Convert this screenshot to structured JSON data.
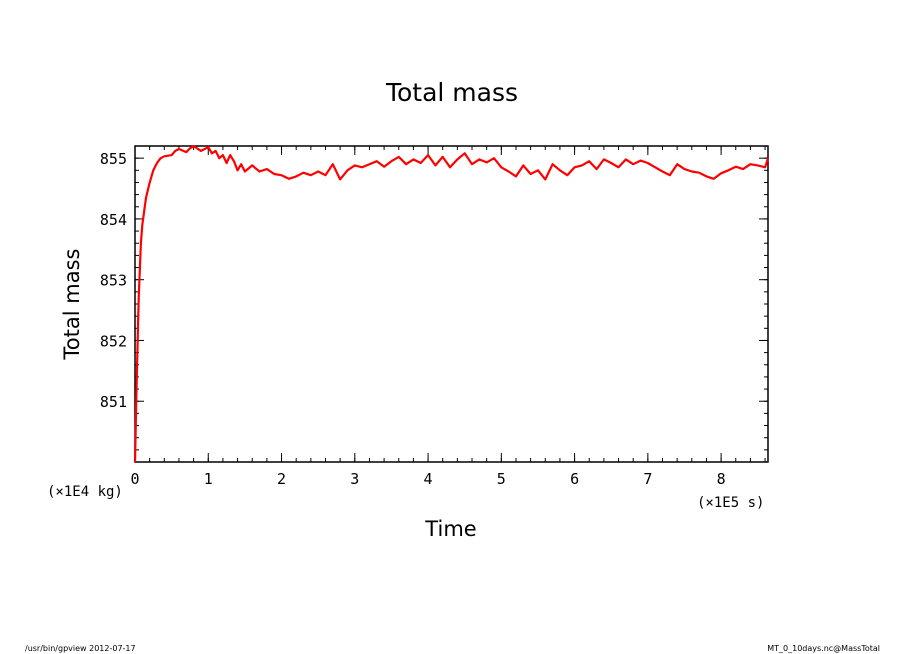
{
  "chart_data": {
    "type": "line",
    "title": "Total mass",
    "xlabel": "Time",
    "ylabel": "Total mass",
    "x_unit": "(×1E5 s)",
    "y_unit": "(×1E4 kg)",
    "xlim": [
      0,
      8.64
    ],
    "ylim": [
      850,
      855.2
    ],
    "x_ticks": [
      0,
      1,
      2,
      3,
      4,
      5,
      6,
      7,
      8
    ],
    "y_ticks": [
      851,
      852,
      853,
      854,
      855
    ],
    "x_minor_step": 0.2,
    "y_minor_step": 0.2,
    "grid": false,
    "series": [
      {
        "color": "#ff0000",
        "x": [
          0,
          0.02,
          0.05,
          0.08,
          0.1,
          0.15,
          0.2,
          0.25,
          0.3,
          0.35,
          0.4,
          0.5,
          0.55,
          0.6,
          0.7,
          0.75,
          0.8,
          0.9,
          1.0,
          1.05,
          1.1,
          1.15,
          1.2,
          1.25,
          1.3,
          1.35,
          1.4,
          1.45,
          1.5,
          1.6,
          1.7,
          1.8,
          1.9,
          2.0,
          2.1,
          2.2,
          2.3,
          2.4,
          2.5,
          2.6,
          2.7,
          2.8,
          2.9,
          3.0,
          3.1,
          3.2,
          3.3,
          3.4,
          3.5,
          3.6,
          3.7,
          3.8,
          3.9,
          4.0,
          4.1,
          4.2,
          4.3,
          4.4,
          4.5,
          4.6,
          4.7,
          4.8,
          4.9,
          5.0,
          5.1,
          5.2,
          5.3,
          5.4,
          5.5,
          5.6,
          5.7,
          5.8,
          5.9,
          6.0,
          6.1,
          6.2,
          6.3,
          6.4,
          6.5,
          6.6,
          6.7,
          6.8,
          6.9,
          7.0,
          7.1,
          7.2,
          7.3,
          7.4,
          7.5,
          7.6,
          7.7,
          7.8,
          7.9,
          8.0,
          8.1,
          8.2,
          8.3,
          8.4,
          8.5,
          8.6,
          8.64
        ],
        "y": [
          850,
          851.2,
          852.7,
          853.6,
          853.9,
          854.35,
          854.6,
          854.8,
          854.92,
          855.0,
          855.03,
          855.05,
          855.12,
          855.15,
          855.1,
          855.16,
          855.2,
          855.12,
          855.18,
          855.08,
          855.12,
          855.0,
          855.05,
          854.92,
          855.05,
          854.95,
          854.8,
          854.9,
          854.78,
          854.88,
          854.78,
          854.82,
          854.74,
          854.72,
          854.66,
          854.7,
          854.76,
          854.72,
          854.78,
          854.72,
          854.9,
          854.65,
          854.8,
          854.88,
          854.85,
          854.9,
          854.95,
          854.86,
          854.95,
          855.02,
          854.9,
          854.98,
          854.92,
          855.05,
          854.88,
          855.02,
          854.85,
          854.98,
          855.08,
          854.9,
          854.98,
          854.93,
          855.0,
          854.85,
          854.78,
          854.7,
          854.88,
          854.74,
          854.8,
          854.65,
          854.9,
          854.8,
          854.72,
          854.85,
          854.88,
          854.95,
          854.82,
          854.98,
          854.92,
          854.85,
          854.98,
          854.9,
          854.96,
          854.92,
          854.85,
          854.78,
          854.72,
          854.9,
          854.82,
          854.78,
          854.76,
          854.7,
          854.66,
          854.75,
          854.8,
          854.86,
          854.82,
          854.9,
          854.88,
          854.85,
          855.0
        ]
      }
    ]
  },
  "footer": {
    "left": "/usr/bin/gpview  2012-07-17",
    "right": "MT_0_10days.nc@MassTotal"
  }
}
